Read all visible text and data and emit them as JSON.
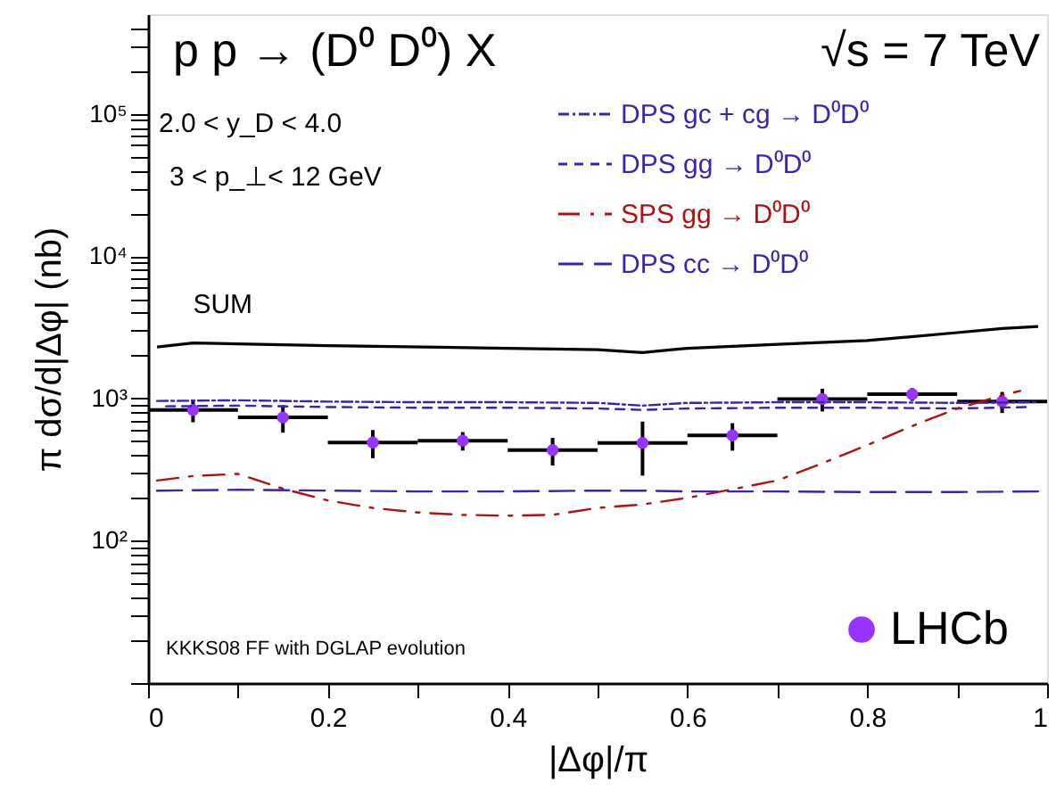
{
  "chart_data": {
    "type": "line",
    "title": "p p → (D⁰ D⁰) X",
    "subtitle": "√s = 7 TeV",
    "xlabel": "|Δφ|/π",
    "ylabel": "π dσ/d|Δφ|    (nb)",
    "annotations": [
      "2.0 < y_D < 4.0",
      "3 < p_⊥< 12 GeV",
      "KKKS08 FF with DGLAP evolution"
    ],
    "log": "y",
    "xlim": [
      0,
      1
    ],
    "xticks": [
      0,
      {
        "value": 0.1,
        "label": null
      },
      0.2,
      {
        "value": 0.3,
        "label": null
      },
      0.4,
      {
        "value": 0.5,
        "label": null
      },
      0.6,
      {
        "value": 0.7,
        "label": null
      },
      0.8,
      {
        "value": 0.9,
        "label": null
      },
      1
    ],
    "ylim": [
      10,
      500000
    ],
    "yticks": [
      {
        "value": 10,
        "label": null
      },
      {
        "value": 20,
        "label": null
      },
      {
        "value": 30,
        "label": null
      },
      {
        "value": 40,
        "label": null
      },
      {
        "value": 50,
        "label": null
      },
      {
        "value": 60,
        "label": null
      },
      {
        "value": 70,
        "label": null
      },
      {
        "value": 80,
        "label": null
      },
      {
        "value": 90,
        "label": null
      },
      {
        "value": 100,
        "label": "10²"
      },
      {
        "value": 200,
        "label": null
      },
      {
        "value": 300,
        "label": null
      },
      {
        "value": 400,
        "label": null
      },
      {
        "value": 500,
        "label": null
      },
      {
        "value": 600,
        "label": null
      },
      {
        "value": 700,
        "label": null
      },
      {
        "value": 800,
        "label": null
      },
      {
        "value": 900,
        "label": null
      },
      {
        "value": 1000,
        "label": "10³"
      },
      {
        "value": 2000,
        "label": null
      },
      {
        "value": 3000,
        "label": null
      },
      {
        "value": 4000,
        "label": null
      },
      {
        "value": 5000,
        "label": null
      },
      {
        "value": 6000,
        "label": null
      },
      {
        "value": 7000,
        "label": null
      },
      {
        "value": 8000,
        "label": null
      },
      {
        "value": 9000,
        "label": null
      },
      {
        "value": 10000,
        "label": "10⁴"
      },
      {
        "value": 20000,
        "label": null
      },
      {
        "value": 30000,
        "label": null
      },
      {
        "value": 40000,
        "label": null
      },
      {
        "value": 50000,
        "label": null
      },
      {
        "value": 60000,
        "label": null
      },
      {
        "value": 70000,
        "label": null
      },
      {
        "value": 80000,
        "label": null
      },
      {
        "value": 90000,
        "label": null
      },
      {
        "value": 100000,
        "label": "10⁵"
      },
      {
        "value": 200000,
        "label": null
      },
      {
        "value": 300000,
        "label": null
      },
      {
        "value": 400000,
        "label": null
      }
    ],
    "grid": false,
    "legend": "right",
    "series": [
      {
        "name": "SUM",
        "color": "#000000",
        "line_style": "solid",
        "x": [
          0.01,
          0.05,
          0.2,
          0.4,
          0.5,
          0.55,
          0.6,
          0.7,
          0.8,
          0.9,
          0.95,
          0.99
        ],
        "values": [
          2300,
          2450,
          2350,
          2250,
          2200,
          2100,
          2250,
          2400,
          2550,
          2900,
          3100,
          3200
        ]
      },
      {
        "name": "DPS gc + cg → D⁰D⁰",
        "color": "#4020b0",
        "line_style": "dashdot",
        "x": [
          0.01,
          0.1,
          0.2,
          0.3,
          0.4,
          0.5,
          0.55,
          0.6,
          0.7,
          0.8,
          0.9,
          0.99
        ],
        "values": [
          960,
          970,
          950,
          940,
          940,
          930,
          890,
          930,
          940,
          940,
          930,
          940
        ]
      },
      {
        "name": "DPS gg → D⁰D⁰",
        "color": "#4020b0",
        "line_style": "dashed",
        "x": [
          0.02,
          0.1,
          0.2,
          0.3,
          0.4,
          0.5,
          0.55,
          0.6,
          0.7,
          0.8,
          0.9,
          0.98
        ],
        "values": [
          880,
          890,
          870,
          860,
          860,
          850,
          830,
          850,
          860,
          860,
          850,
          870
        ]
      },
      {
        "name": "SPS gg → D⁰D⁰",
        "color": "#b01010",
        "line_style": "longdashdot",
        "x": [
          0.01,
          0.05,
          0.1,
          0.15,
          0.2,
          0.25,
          0.3,
          0.35,
          0.4,
          0.45,
          0.5,
          0.55,
          0.6,
          0.65,
          0.7,
          0.75,
          0.8,
          0.85,
          0.9,
          0.95,
          0.97
        ],
        "values": [
          265,
          285,
          295,
          232,
          192,
          170,
          158,
          152,
          150,
          152,
          170,
          180,
          200,
          230,
          265,
          350,
          470,
          640,
          850,
          1050,
          1130
        ]
      },
      {
        "name": "DPS cc → D⁰D⁰",
        "color": "#4020b0",
        "line_style": "longdash",
        "x": [
          0.01,
          0.1,
          0.2,
          0.3,
          0.4,
          0.5,
          0.55,
          0.6,
          0.7,
          0.8,
          0.9,
          0.99
        ],
        "values": [
          225,
          228,
          225,
          222,
          222,
          225,
          225,
          222,
          222,
          220,
          220,
          222
        ]
      },
      {
        "name": "LHCb",
        "type": "scatter",
        "color": "#9933ff",
        "marker": "circle",
        "x": [
          0.05,
          0.15,
          0.25,
          0.35,
          0.45,
          0.55,
          0.65,
          0.75,
          0.85,
          0.95
        ],
        "values": [
          830,
          735,
          490,
          505,
          433,
          487,
          550,
          990,
          1070,
          950
        ],
        "errors": [
          150,
          160,
          110,
          75,
          95,
          200,
          120,
          180,
          110,
          160
        ],
        "xerrors": [
          0.05,
          0.05,
          0.05,
          0.05,
          0.05,
          0.05,
          0.05,
          0.05,
          0.05,
          0.05
        ]
      }
    ]
  }
}
